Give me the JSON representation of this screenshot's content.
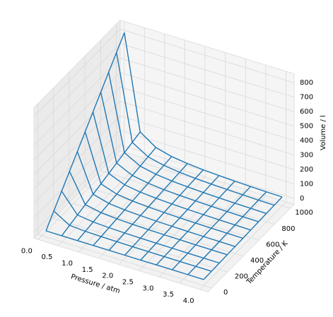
{
  "chart_data": {
    "type": "wireframe",
    "xlabel": "Pressure / atm",
    "ylabel": "Temperature / K",
    "zlabel": "Volume / l",
    "color": "#1f77b4",
    "grid": true,
    "x": [
      0.1,
      0.49,
      0.88,
      1.27,
      1.66,
      2.05,
      2.44,
      2.83,
      3.22,
      3.61,
      4.0
    ],
    "y": [
      0,
      100,
      200,
      300,
      400,
      500,
      600,
      700,
      800,
      900,
      1000
    ],
    "z": [
      [
        0,
        0,
        0,
        0,
        0,
        0,
        0,
        0,
        0,
        0,
        0
      ],
      [
        82.1,
        16.7,
        9.3,
        6.5,
        4.9,
        4.0,
        3.4,
        2.9,
        2.5,
        2.3,
        2.1
      ],
      [
        164.1,
        33.5,
        18.7,
        12.9,
        9.9,
        8.0,
        6.7,
        5.8,
        5.1,
        4.5,
        4.1
      ],
      [
        246.2,
        50.2,
        28.0,
        19.4,
        14.8,
        12.0,
        10.1,
        8.7,
        7.6,
        6.8,
        6.2
      ],
      [
        328.2,
        67.0,
        37.3,
        25.8,
        19.8,
        16.0,
        13.5,
        11.6,
        10.2,
        9.1,
        8.2
      ],
      [
        410.3,
        83.7,
        46.6,
        32.3,
        24.7,
        20.0,
        16.8,
        14.5,
        12.7,
        11.4,
        10.3
      ],
      [
        492.4,
        100.5,
        56.0,
        38.8,
        29.7,
        24.0,
        20.2,
        17.4,
        15.3,
        13.6,
        12.3
      ],
      [
        574.4,
        117.2,
        65.3,
        45.2,
        34.6,
        28.0,
        23.5,
        20.3,
        17.8,
        15.9,
        14.4
      ],
      [
        656.5,
        134.0,
        74.6,
        51.7,
        39.5,
        32.0,
        26.9,
        23.2,
        20.4,
        18.2,
        16.4
      ],
      [
        738.5,
        150.7,
        83.9,
        58.1,
        44.5,
        36.0,
        30.3,
        26.1,
        22.9,
        20.5,
        18.5
      ],
      [
        820.6,
        167.5,
        93.3,
        64.6,
        49.4,
        40.0,
        33.6,
        29.0,
        25.5,
        22.7,
        20.5
      ]
    ],
    "xlim": [
      -0.1,
      4.2
    ],
    "ylim": [
      -50,
      1050
    ],
    "zlim": [
      -41,
      862
    ],
    "xticks": [
      {
        "value": 0,
        "label": "0.0"
      },
      0.5,
      {
        "value": 1,
        "label": "1.0"
      },
      1.5,
      {
        "value": 2,
        "label": "2.0"
      },
      2.5,
      {
        "value": 3,
        "label": "3.0"
      },
      3.5,
      {
        "value": 4,
        "label": "4.0"
      }
    ],
    "yticks": [
      0,
      200,
      400,
      600,
      800,
      1000
    ],
    "zticks": [
      0,
      100,
      200,
      300,
      400,
      500,
      600,
      700,
      800
    ]
  }
}
